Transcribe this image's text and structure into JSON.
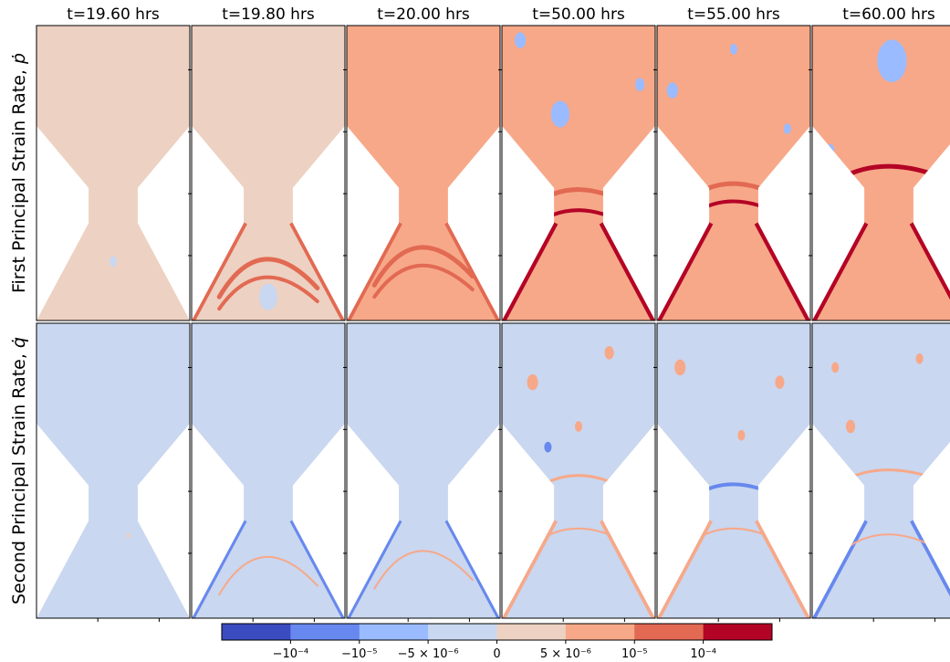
{
  "chart_data": {
    "type": "heatmap",
    "description_kind": "contour panels of principal strain rates in an hourglass-shaped domain",
    "columns": [
      "t=19.60 hrs",
      "t=19.80 hrs",
      "t=20.00 hrs",
      "t=50.00 hrs",
      "t=55.00 hrs",
      "t=60.00 hrs"
    ],
    "rows": [
      {
        "label": "First Principal Strain Rate, ",
        "symbol": "ṗ"
      },
      {
        "label": "Second Principal Strain Rate, ",
        "symbol": "q̇"
      }
    ],
    "colorbar": {
      "colors": [
        "#3a4cc0",
        "#6788ee",
        "#9abbff",
        "#c9d7f0",
        "#edd1c2",
        "#f7a889",
        "#e26952",
        "#b40426"
      ],
      "ticks": [
        "−10⁻⁴",
        "−10⁻⁵",
        "−5 × 10⁻⁶",
        "0",
        "5 × 10⁻⁶",
        "10⁻⁵",
        "10⁻⁴"
      ]
    },
    "panels": [
      [
        {
          "fill": "#edd1c2",
          "bands": [],
          "blobs": [
            {
              "cx": 0.5,
              "cy": 0.8,
              "r": 0.02,
              "color": "#c9d7f0"
            }
          ]
        },
        {
          "fill": "#edd1c2",
          "bands": [
            {
              "y": 0.8,
              "amp": 0.06,
              "color": "#e26952",
              "w": 5
            },
            {
              "y": 0.86,
              "amp": 0.05,
              "color": "#e26952",
              "w": 4
            }
          ],
          "edge": {
            "color": "#e26952",
            "w": 4
          },
          "blobs": [
            {
              "cx": 0.5,
              "cy": 0.92,
              "r": 0.05,
              "color": "#c9d7f0"
            }
          ]
        },
        {
          "fill": "#f7a889",
          "bands": [
            {
              "y": 0.76,
              "amp": 0.06,
              "color": "#e26952",
              "w": 5
            },
            {
              "y": 0.82,
              "amp": 0.05,
              "color": "#e26952",
              "w": 4
            }
          ],
          "edge": {
            "color": "#e26952",
            "w": 4
          },
          "blobs": []
        },
        {
          "fill": "#f7a889",
          "bands": [
            {
              "y": 0.56,
              "amp": 0.03,
              "color": "#e26952",
              "w": 5
            },
            {
              "y": 0.63,
              "amp": 0.03,
              "color": "#b40426",
              "w": 4
            }
          ],
          "edge": {
            "color": "#b40426",
            "w": 5
          },
          "blobs": [
            {
              "cx": 0.38,
              "cy": 0.3,
              "r": 0.05,
              "color": "#9abbff"
            },
            {
              "cx": 0.12,
              "cy": 0.05,
              "r": 0.03,
              "color": "#9abbff"
            },
            {
              "cx": 0.9,
              "cy": 0.2,
              "r": 0.025,
              "color": "#9abbff"
            }
          ]
        },
        {
          "fill": "#f7a889",
          "bands": [
            {
              "y": 0.54,
              "amp": 0.03,
              "color": "#e26952",
              "w": 5
            },
            {
              "y": 0.6,
              "amp": 0.03,
              "color": "#b40426",
              "w": 4
            }
          ],
          "edge": {
            "color": "#b40426",
            "w": 5
          },
          "blobs": [
            {
              "cx": 0.1,
              "cy": 0.22,
              "r": 0.03,
              "color": "#9abbff"
            },
            {
              "cx": 0.5,
              "cy": 0.08,
              "r": 0.02,
              "color": "#9abbff"
            },
            {
              "cx": 0.85,
              "cy": 0.35,
              "r": 0.02,
              "color": "#9abbff"
            }
          ]
        },
        {
          "fill": "#f7a889",
          "bands": [
            {
              "y": 0.48,
              "amp": 0.02,
              "color": "#b40426",
              "w": 5
            }
          ],
          "edge": {
            "color": "#b40426",
            "w": 5
          },
          "blobs": [
            {
              "cx": 0.52,
              "cy": 0.12,
              "r": 0.08,
              "color": "#9abbff"
            },
            {
              "cx": 0.12,
              "cy": 0.42,
              "r": 0.02,
              "color": "#9abbff"
            }
          ]
        }
      ],
      [
        {
          "fill": "#c9d7f0",
          "bands": [],
          "blobs": [
            {
              "cx": 0.6,
              "cy": 0.72,
              "r": 0.01,
              "color": "#edd1c2"
            }
          ]
        },
        {
          "fill": "#c9d7f0",
          "bands": [
            {
              "y": 0.8,
              "amp": 0.06,
              "color": "#f7a889",
              "w": 2
            }
          ],
          "edge": {
            "color": "#6788ee",
            "w": 3
          },
          "blobs": []
        },
        {
          "fill": "#c9d7f0",
          "bands": [
            {
              "y": 0.78,
              "amp": 0.06,
              "color": "#f7a889",
              "w": 2
            }
          ],
          "edge": {
            "color": "#6788ee",
            "w": 3
          },
          "blobs": []
        },
        {
          "fill": "#c9d7f0",
          "bands": [
            {
              "y": 0.52,
              "amp": 0.03,
              "color": "#f7a889",
              "w": 3
            },
            {
              "y": 0.7,
              "amp": 0.03,
              "color": "#f7a889",
              "w": 2
            }
          ],
          "edge": {
            "color": "#f7a889",
            "w": 4
          },
          "blobs": [
            {
              "cx": 0.2,
              "cy": 0.2,
              "r": 0.03,
              "color": "#f7a889"
            },
            {
              "cx": 0.7,
              "cy": 0.1,
              "r": 0.025,
              "color": "#f7a889"
            },
            {
              "cx": 0.5,
              "cy": 0.35,
              "r": 0.02,
              "color": "#f7a889"
            },
            {
              "cx": 0.3,
              "cy": 0.42,
              "r": 0.02,
              "color": "#6788ee"
            }
          ]
        },
        {
          "fill": "#c9d7f0",
          "bands": [
            {
              "y": 0.55,
              "amp": 0.03,
              "color": "#6788ee",
              "w": 4
            },
            {
              "y": 0.7,
              "amp": 0.03,
              "color": "#f7a889",
              "w": 2
            }
          ],
          "edge": {
            "color": "#f7a889",
            "w": 4
          },
          "blobs": [
            {
              "cx": 0.15,
              "cy": 0.15,
              "r": 0.03,
              "color": "#f7a889"
            },
            {
              "cx": 0.8,
              "cy": 0.2,
              "r": 0.025,
              "color": "#f7a889"
            },
            {
              "cx": 0.55,
              "cy": 0.38,
              "r": 0.02,
              "color": "#f7a889"
            }
          ]
        },
        {
          "fill": "#c9d7f0",
          "bands": [
            {
              "y": 0.5,
              "amp": 0.02,
              "color": "#f7a889",
              "w": 3
            },
            {
              "y": 0.72,
              "amp": 0.03,
              "color": "#f7a889",
              "w": 2
            }
          ],
          "edge": {
            "color": "#6788ee",
            "w": 4
          },
          "blobs": [
            {
              "cx": 0.25,
              "cy": 0.35,
              "r": 0.025,
              "color": "#f7a889"
            },
            {
              "cx": 0.7,
              "cy": 0.12,
              "r": 0.02,
              "color": "#f7a889"
            },
            {
              "cx": 0.15,
              "cy": 0.15,
              "r": 0.02,
              "color": "#f7a889"
            }
          ]
        }
      ]
    ]
  }
}
